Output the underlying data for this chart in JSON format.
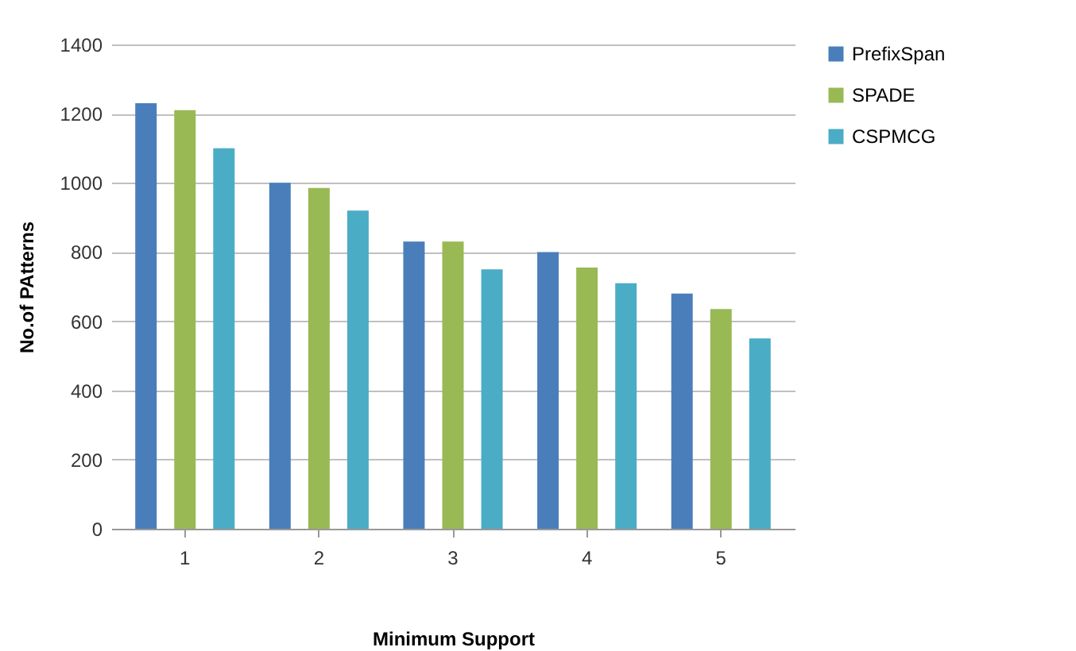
{
  "chart_data": {
    "type": "bar",
    "xlabel": "Minimum Support",
    "ylabel": "No.of PAtterns",
    "categories": [
      "1",
      "2",
      "3",
      "4",
      "5"
    ],
    "series": [
      {
        "name": "PrefixSpan",
        "color": "#4a7ebb",
        "values": [
          1230,
          1000,
          830,
          800,
          680
        ]
      },
      {
        "name": "SPADE",
        "color": "#98b954",
        "values": [
          1210,
          985,
          830,
          755,
          635
        ]
      },
      {
        "name": "CSPMCG",
        "color": "#4bacc6",
        "values": [
          1100,
          920,
          750,
          710,
          550
        ]
      }
    ],
    "ylim": [
      0,
      1400
    ],
    "yticks": [
      0,
      200,
      400,
      600,
      800,
      1000,
      1200,
      1400
    ],
    "grid": "y",
    "legend": "right"
  }
}
